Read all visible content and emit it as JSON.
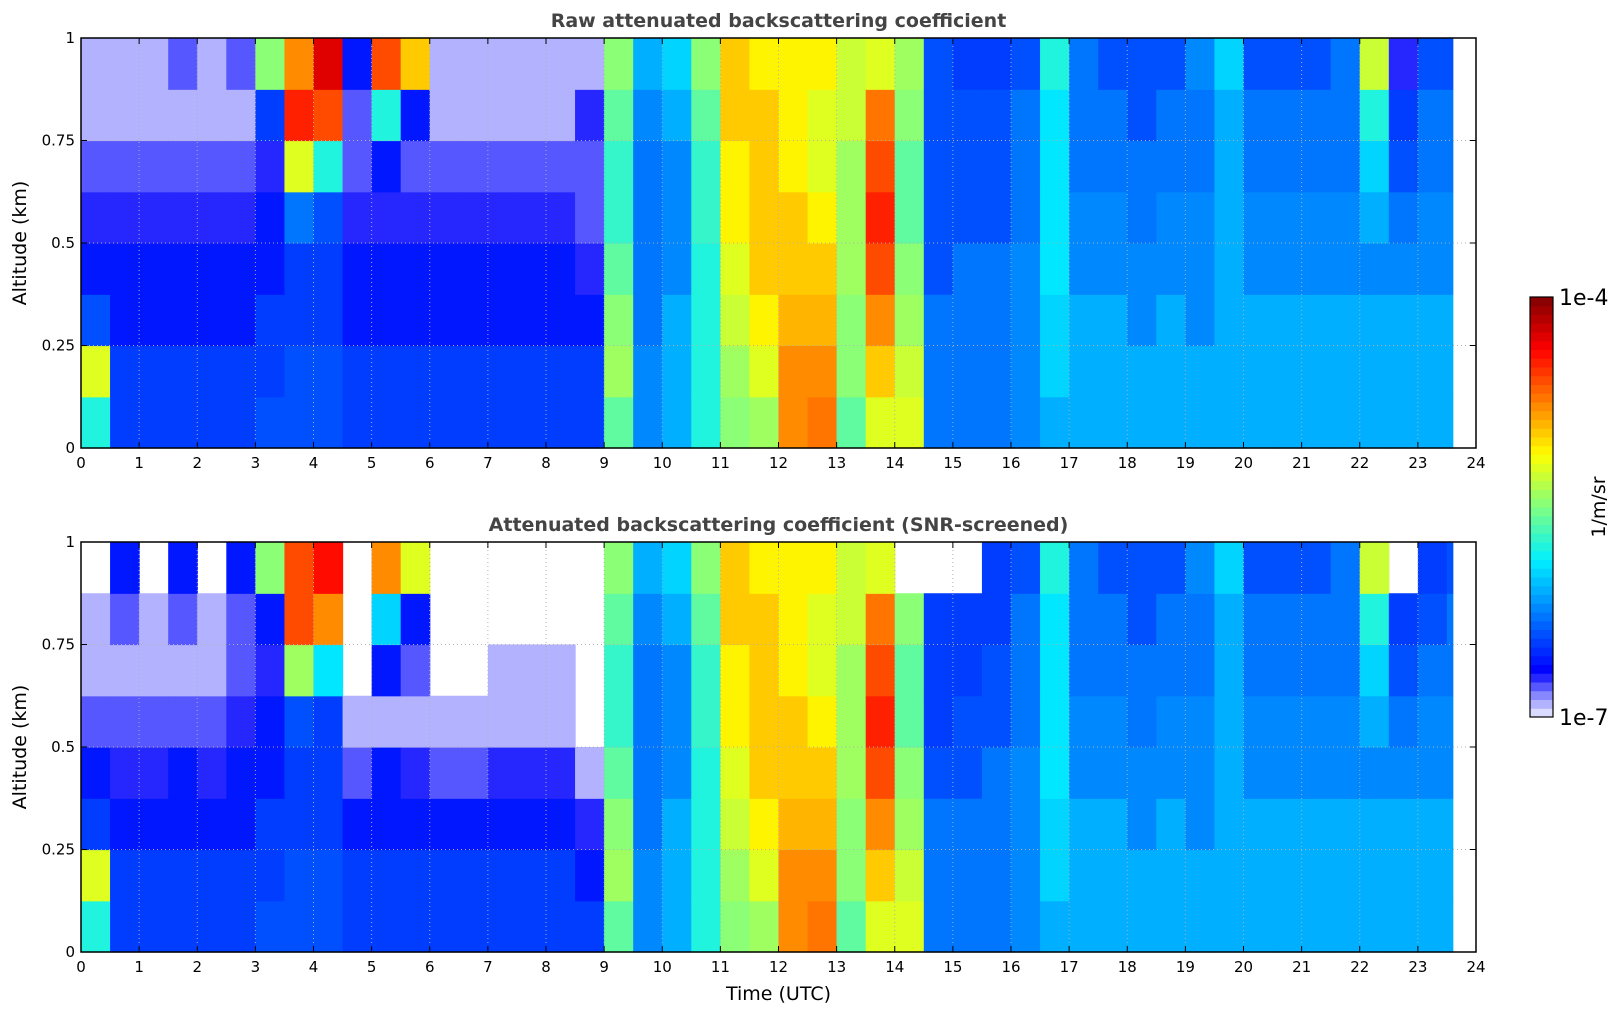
{
  "chart_data": [
    {
      "type": "heatmap",
      "title": "Raw attenuated backscattering coefficient",
      "xlabel": "",
      "ylabel": "Altitude (km)",
      "xlim": [
        0,
        24
      ],
      "ylim": [
        0,
        1
      ],
      "xticks": [
        "0",
        "1",
        "2",
        "3",
        "4",
        "5",
        "6",
        "7",
        "8",
        "9",
        "10",
        "11",
        "12",
        "13",
        "14",
        "15",
        "16",
        "17",
        "18",
        "19",
        "20",
        "21",
        "22",
        "23",
        "24"
      ],
      "yticks": [
        "0",
        "0.25",
        "0.5",
        "0.75",
        "1"
      ],
      "grid": true,
      "value_scale": "log10 (1/m/sr)",
      "time_edges": [
        0,
        0.5,
        1,
        1.5,
        2,
        2.5,
        3,
        3.5,
        4,
        4.5,
        5,
        5.5,
        6,
        6.5,
        7,
        7.5,
        8,
        8.5,
        9,
        9.5,
        10,
        10.5,
        11,
        11.5,
        12,
        12.5,
        13,
        13.5,
        14,
        14.5,
        15,
        15.5,
        16,
        16.5,
        17,
        17.5,
        18,
        18.5,
        19,
        19.5,
        20,
        20.5,
        21,
        21.5,
        22,
        22.5,
        23,
        23.5,
        23.6
      ],
      "altitude_edges": [
        0,
        0.125,
        0.25,
        0.375,
        0.5,
        0.625,
        0.75,
        0.875,
        1
      ],
      "z": [
        [
          -5.8,
          -5.2,
          -6.4,
          -6.6,
          -6.7,
          -6.8,
          -6.9,
          -6.9
        ],
        [
          -6.5,
          -6.5,
          -6.6,
          -6.6,
          -6.7,
          -6.8,
          -6.9,
          -6.9
        ],
        [
          -6.5,
          -6.5,
          -6.6,
          -6.6,
          -6.7,
          -6.8,
          -6.9,
          -6.9
        ],
        [
          -6.5,
          -6.5,
          -6.6,
          -6.6,
          -6.7,
          -6.8,
          -6.9,
          -6.8
        ],
        [
          -6.5,
          -6.5,
          -6.6,
          -6.6,
          -6.7,
          -6.8,
          -6.9,
          -6.9
        ],
        [
          -6.5,
          -6.5,
          -6.6,
          -6.6,
          -6.7,
          -6.8,
          -6.9,
          -6.8
        ],
        [
          -6.4,
          -6.5,
          -6.5,
          -6.6,
          -6.6,
          -6.7,
          -6.5,
          -5.5
        ],
        [
          -6.4,
          -6.4,
          -6.5,
          -6.5,
          -6.3,
          -5.2,
          -4.5,
          -4.8
        ],
        [
          -6.4,
          -6.4,
          -6.5,
          -6.5,
          -6.4,
          -5.8,
          -4.6,
          -4.3
        ],
        [
          -6.5,
          -6.5,
          -6.6,
          -6.6,
          -6.7,
          -6.8,
          -6.8,
          -6.6
        ],
        [
          -6.5,
          -6.5,
          -6.6,
          -6.6,
          -6.7,
          -6.6,
          -5.8,
          -4.6
        ],
        [
          -6.5,
          -6.5,
          -6.6,
          -6.6,
          -6.7,
          -6.8,
          -6.6,
          -5.0
        ],
        [
          -6.5,
          -6.5,
          -6.6,
          -6.6,
          -6.7,
          -6.8,
          -6.9,
          -6.9
        ],
        [
          -6.5,
          -6.5,
          -6.6,
          -6.6,
          -6.7,
          -6.8,
          -6.9,
          -6.9
        ],
        [
          -6.5,
          -6.5,
          -6.6,
          -6.6,
          -6.7,
          -6.8,
          -6.9,
          -6.9
        ],
        [
          -6.5,
          -6.5,
          -6.6,
          -6.6,
          -6.7,
          -6.8,
          -6.9,
          -6.9
        ],
        [
          -6.5,
          -6.5,
          -6.6,
          -6.6,
          -6.7,
          -6.8,
          -6.9,
          -6.9
        ],
        [
          -6.5,
          -6.5,
          -6.6,
          -6.7,
          -6.8,
          -6.8,
          -6.7,
          -6.9
        ],
        [
          -5.6,
          -5.4,
          -5.5,
          -5.6,
          -5.7,
          -5.7,
          -5.6,
          -5.5
        ],
        [
          -6.2,
          -6.2,
          -6.3,
          -6.3,
          -6.3,
          -6.3,
          -6.2,
          -6.1
        ],
        [
          -6.1,
          -6.1,
          -6.1,
          -6.2,
          -6.2,
          -6.2,
          -6.1,
          -6.0
        ],
        [
          -5.8,
          -5.8,
          -5.8,
          -5.8,
          -5.7,
          -5.7,
          -5.6,
          -5.5
        ],
        [
          -5.5,
          -5.4,
          -5.3,
          -5.2,
          -5.1,
          -5.1,
          -5.0,
          -5.0
        ],
        [
          -5.4,
          -5.2,
          -5.1,
          -5.0,
          -5.0,
          -5.0,
          -5.0,
          -5.1
        ],
        [
          -4.8,
          -4.8,
          -4.9,
          -5.0,
          -5.0,
          -5.1,
          -5.1,
          -5.1
        ],
        [
          -4.7,
          -4.8,
          -4.9,
          -5.0,
          -5.1,
          -5.2,
          -5.2,
          -5.1
        ],
        [
          -5.6,
          -5.5,
          -5.5,
          -5.4,
          -5.4,
          -5.4,
          -5.3,
          -5.3
        ],
        [
          -5.2,
          -5.0,
          -4.8,
          -4.6,
          -4.5,
          -4.6,
          -4.7,
          -5.2
        ],
        [
          -5.2,
          -5.3,
          -5.4,
          -5.5,
          -5.6,
          -5.6,
          -5.5,
          -5.4
        ],
        [
          -6.3,
          -6.3,
          -6.3,
          -6.4,
          -6.4,
          -6.4,
          -6.4,
          -6.4
        ],
        [
          -6.3,
          -6.3,
          -6.3,
          -6.3,
          -6.4,
          -6.4,
          -6.4,
          -6.5
        ],
        [
          -6.3,
          -6.3,
          -6.3,
          -6.3,
          -6.4,
          -6.4,
          -6.4,
          -6.5
        ],
        [
          -6.2,
          -6.2,
          -6.2,
          -6.2,
          -6.3,
          -6.3,
          -6.3,
          -6.4
        ],
        [
          -6.1,
          -6.0,
          -6.0,
          -5.9,
          -5.9,
          -5.9,
          -5.9,
          -5.8
        ],
        [
          -6.1,
          -6.1,
          -6.1,
          -6.2,
          -6.2,
          -6.3,
          -6.3,
          -6.3
        ],
        [
          -6.1,
          -6.1,
          -6.1,
          -6.2,
          -6.2,
          -6.3,
          -6.3,
          -6.4
        ],
        [
          -6.1,
          -6.1,
          -6.2,
          -6.2,
          -6.3,
          -6.3,
          -6.4,
          -6.4
        ],
        [
          -6.1,
          -6.1,
          -6.1,
          -6.2,
          -6.2,
          -6.3,
          -6.3,
          -6.4
        ],
        [
          -6.1,
          -6.1,
          -6.2,
          -6.2,
          -6.2,
          -6.3,
          -6.3,
          -6.2
        ],
        [
          -6.1,
          -6.1,
          -6.1,
          -6.1,
          -6.1,
          -6.1,
          -6.1,
          -6.0
        ],
        [
          -6.1,
          -6.1,
          -6.1,
          -6.2,
          -6.2,
          -6.3,
          -6.3,
          -6.4
        ],
        [
          -6.1,
          -6.1,
          -6.1,
          -6.2,
          -6.2,
          -6.3,
          -6.3,
          -6.4
        ],
        [
          -6.1,
          -6.1,
          -6.1,
          -6.2,
          -6.2,
          -6.3,
          -6.3,
          -6.4
        ],
        [
          -6.1,
          -6.1,
          -6.1,
          -6.2,
          -6.2,
          -6.3,
          -6.3,
          -6.3
        ],
        [
          -6.1,
          -6.1,
          -6.1,
          -6.2,
          -6.1,
          -6.0,
          -5.8,
          -5.3
        ],
        [
          -6.1,
          -6.1,
          -6.1,
          -6.2,
          -6.3,
          -6.4,
          -6.5,
          -6.7
        ],
        [
          -6.1,
          -6.1,
          -6.1,
          -6.2,
          -6.2,
          -6.3,
          -6.3,
          -6.4
        ],
        [
          -6.1,
          -6.1,
          -6.1,
          -6.2,
          -6.2,
          -6.3,
          -6.3,
          -6.4
        ]
      ]
    },
    {
      "type": "heatmap",
      "title": "Attenuated backscattering coefficient (SNR-screened)",
      "xlabel": "Time (UTC)",
      "ylabel": "Altitude (km)",
      "xlim": [
        0,
        24
      ],
      "ylim": [
        0,
        1
      ],
      "xticks": [
        "0",
        "1",
        "2",
        "3",
        "4",
        "5",
        "6",
        "7",
        "8",
        "9",
        "10",
        "11",
        "12",
        "13",
        "14",
        "15",
        "16",
        "17",
        "18",
        "19",
        "20",
        "21",
        "22",
        "23",
        "24"
      ],
      "yticks": [
        "0",
        "0.25",
        "0.5",
        "0.75",
        "1"
      ],
      "grid": true,
      "value_scale": "log10 (1/m/sr)",
      "time_edges": [
        0,
        0.5,
        1,
        1.5,
        2,
        2.5,
        3,
        3.5,
        4,
        4.5,
        5,
        5.5,
        6,
        6.5,
        7,
        7.5,
        8,
        8.5,
        9,
        9.5,
        10,
        10.5,
        11,
        11.5,
        12,
        12.5,
        13,
        13.5,
        14,
        14.5,
        15,
        15.5,
        16,
        16.5,
        17,
        17.5,
        18,
        18.5,
        19,
        19.5,
        20,
        20.5,
        21,
        21.5,
        22,
        22.5,
        23,
        23.5,
        23.6
      ],
      "altitude_edges": [
        0,
        0.125,
        0.25,
        0.375,
        0.5,
        0.625,
        0.75,
        0.875,
        1
      ],
      "z": [
        [
          -5.8,
          -5.2,
          -6.5,
          -6.6,
          -6.8,
          -6.9,
          -6.9,
          null
        ],
        [
          -6.5,
          -6.5,
          -6.6,
          -6.7,
          -6.8,
          -6.9,
          -6.8,
          -6.6
        ],
        [
          -6.5,
          -6.5,
          -6.6,
          -6.7,
          -6.8,
          -6.9,
          -6.9,
          null
        ],
        [
          -6.5,
          -6.5,
          -6.6,
          -6.6,
          -6.8,
          -6.9,
          -6.8,
          -6.6
        ],
        [
          -6.5,
          -6.5,
          -6.6,
          -6.7,
          -6.8,
          -6.9,
          -6.9,
          null
        ],
        [
          -6.5,
          -6.5,
          -6.6,
          -6.6,
          -6.7,
          -6.8,
          -6.8,
          -6.6
        ],
        [
          -6.4,
          -6.5,
          -6.5,
          -6.6,
          -6.6,
          -6.7,
          -6.6,
          -5.5
        ],
        [
          -6.4,
          -6.4,
          -6.5,
          -6.5,
          -6.4,
          -5.4,
          -4.6,
          -4.6
        ],
        [
          -6.4,
          -6.4,
          -6.5,
          -6.5,
          -6.5,
          -5.9,
          -4.8,
          -4.4
        ],
        [
          -6.5,
          -6.5,
          -6.6,
          -6.8,
          -6.9,
          null,
          null,
          null
        ],
        [
          -6.5,
          -6.5,
          -6.6,
          -6.6,
          -6.9,
          -6.6,
          -6.0,
          -4.8
        ],
        [
          -6.5,
          -6.5,
          -6.6,
          -6.7,
          -6.9,
          -6.8,
          -6.6,
          -5.2
        ],
        [
          -6.5,
          -6.5,
          -6.6,
          -6.8,
          -6.9,
          null,
          null,
          null
        ],
        [
          -6.5,
          -6.5,
          -6.6,
          -6.8,
          -6.9,
          null,
          null,
          null
        ],
        [
          -6.5,
          -6.5,
          -6.6,
          -6.7,
          -6.9,
          -6.9,
          null,
          null
        ],
        [
          -6.5,
          -6.5,
          -6.6,
          -6.7,
          -6.9,
          -6.9,
          null,
          null
        ],
        [
          -6.5,
          -6.5,
          -6.6,
          -6.7,
          -6.9,
          -6.9,
          null,
          null
        ],
        [
          -6.5,
          -6.6,
          -6.7,
          -6.9,
          null,
          null,
          null,
          null
        ],
        [
          -5.6,
          -5.4,
          -5.5,
          -5.6,
          -5.7,
          -5.7,
          -5.6,
          -5.5
        ],
        [
          -6.2,
          -6.2,
          -6.3,
          -6.3,
          -6.3,
          -6.3,
          -6.2,
          -6.1
        ],
        [
          -6.1,
          -6.1,
          -6.1,
          -6.2,
          -6.2,
          -6.2,
          -6.1,
          -6.0
        ],
        [
          -5.8,
          -5.8,
          -5.8,
          -5.8,
          -5.7,
          -5.7,
          -5.6,
          -5.5
        ],
        [
          -5.5,
          -5.4,
          -5.3,
          -5.2,
          -5.1,
          -5.1,
          -5.0,
          -5.0
        ],
        [
          -5.4,
          -5.2,
          -5.1,
          -5.0,
          -5.0,
          -5.0,
          -5.0,
          -5.1
        ],
        [
          -4.8,
          -4.8,
          -4.9,
          -5.0,
          -5.0,
          -5.1,
          -5.1,
          -5.1
        ],
        [
          -4.7,
          -4.8,
          -4.9,
          -5.0,
          -5.1,
          -5.2,
          -5.2,
          -5.1
        ],
        [
          -5.6,
          -5.5,
          -5.5,
          -5.4,
          -5.4,
          -5.4,
          -5.3,
          -5.3
        ],
        [
          -5.2,
          -5.0,
          -4.8,
          -4.6,
          -4.5,
          -4.6,
          -4.7,
          -5.2
        ],
        [
          -5.2,
          -5.3,
          -5.4,
          -5.5,
          -5.6,
          -5.6,
          -5.5,
          null
        ],
        [
          -6.3,
          -6.3,
          -6.3,
          -6.4,
          -6.5,
          -6.5,
          -6.5,
          null
        ],
        [
          -6.3,
          -6.3,
          -6.3,
          -6.4,
          -6.4,
          -6.5,
          -6.5,
          null
        ],
        [
          -6.3,
          -6.3,
          -6.3,
          -6.3,
          -6.4,
          -6.4,
          -6.5,
          -6.5
        ],
        [
          -6.2,
          -6.2,
          -6.2,
          -6.2,
          -6.3,
          -6.3,
          -6.3,
          -6.4
        ],
        [
          -6.1,
          -6.0,
          -6.0,
          -5.9,
          -5.9,
          -5.9,
          -5.9,
          -5.8
        ],
        [
          -6.1,
          -6.1,
          -6.1,
          -6.2,
          -6.2,
          -6.3,
          -6.3,
          -6.3
        ],
        [
          -6.1,
          -6.1,
          -6.1,
          -6.2,
          -6.2,
          -6.3,
          -6.3,
          -6.4
        ],
        [
          -6.1,
          -6.1,
          -6.2,
          -6.2,
          -6.3,
          -6.3,
          -6.4,
          -6.4
        ],
        [
          -6.1,
          -6.1,
          -6.1,
          -6.2,
          -6.2,
          -6.3,
          -6.3,
          -6.4
        ],
        [
          -6.1,
          -6.1,
          -6.2,
          -6.2,
          -6.2,
          -6.3,
          -6.3,
          -6.2
        ],
        [
          -6.1,
          -6.1,
          -6.1,
          -6.1,
          -6.1,
          -6.1,
          -6.1,
          -6.0
        ],
        [
          -6.1,
          -6.1,
          -6.1,
          -6.2,
          -6.2,
          -6.3,
          -6.3,
          -6.4
        ],
        [
          -6.1,
          -6.1,
          -6.1,
          -6.2,
          -6.2,
          -6.3,
          -6.3,
          -6.4
        ],
        [
          -6.1,
          -6.1,
          -6.1,
          -6.2,
          -6.2,
          -6.3,
          -6.3,
          -6.4
        ],
        [
          -6.1,
          -6.1,
          -6.1,
          -6.2,
          -6.2,
          -6.3,
          -6.3,
          -6.3
        ],
        [
          -6.1,
          -6.1,
          -6.1,
          -6.2,
          -6.1,
          -6.0,
          -5.8,
          -5.3
        ],
        [
          -6.1,
          -6.1,
          -6.1,
          -6.2,
          -6.3,
          -6.4,
          -6.5,
          null
        ],
        [
          -6.1,
          -6.1,
          -6.1,
          -6.2,
          -6.2,
          -6.3,
          -6.4,
          -6.5
        ],
        [
          -6.1,
          -6.1,
          -6.1,
          -6.2,
          -6.2,
          -6.3,
          -6.3,
          -6.4
        ]
      ]
    }
  ],
  "colorbar": {
    "label": "1/m/sr",
    "min_label": "1e-7",
    "max_label": "1e-4",
    "log10_range": [
      -7,
      -4
    ],
    "levels": 48,
    "stops": [
      [
        0.0,
        "#f0f0ff"
      ],
      [
        0.05,
        "#8c8cff"
      ],
      [
        0.11,
        "#0000ff"
      ],
      [
        0.25,
        "#0080ff"
      ],
      [
        0.375,
        "#00f0ff"
      ],
      [
        0.5,
        "#80ff80"
      ],
      [
        0.625,
        "#ffff00"
      ],
      [
        0.75,
        "#ff8000"
      ],
      [
        0.875,
        "#ff0000"
      ],
      [
        1.0,
        "#800000"
      ]
    ]
  }
}
